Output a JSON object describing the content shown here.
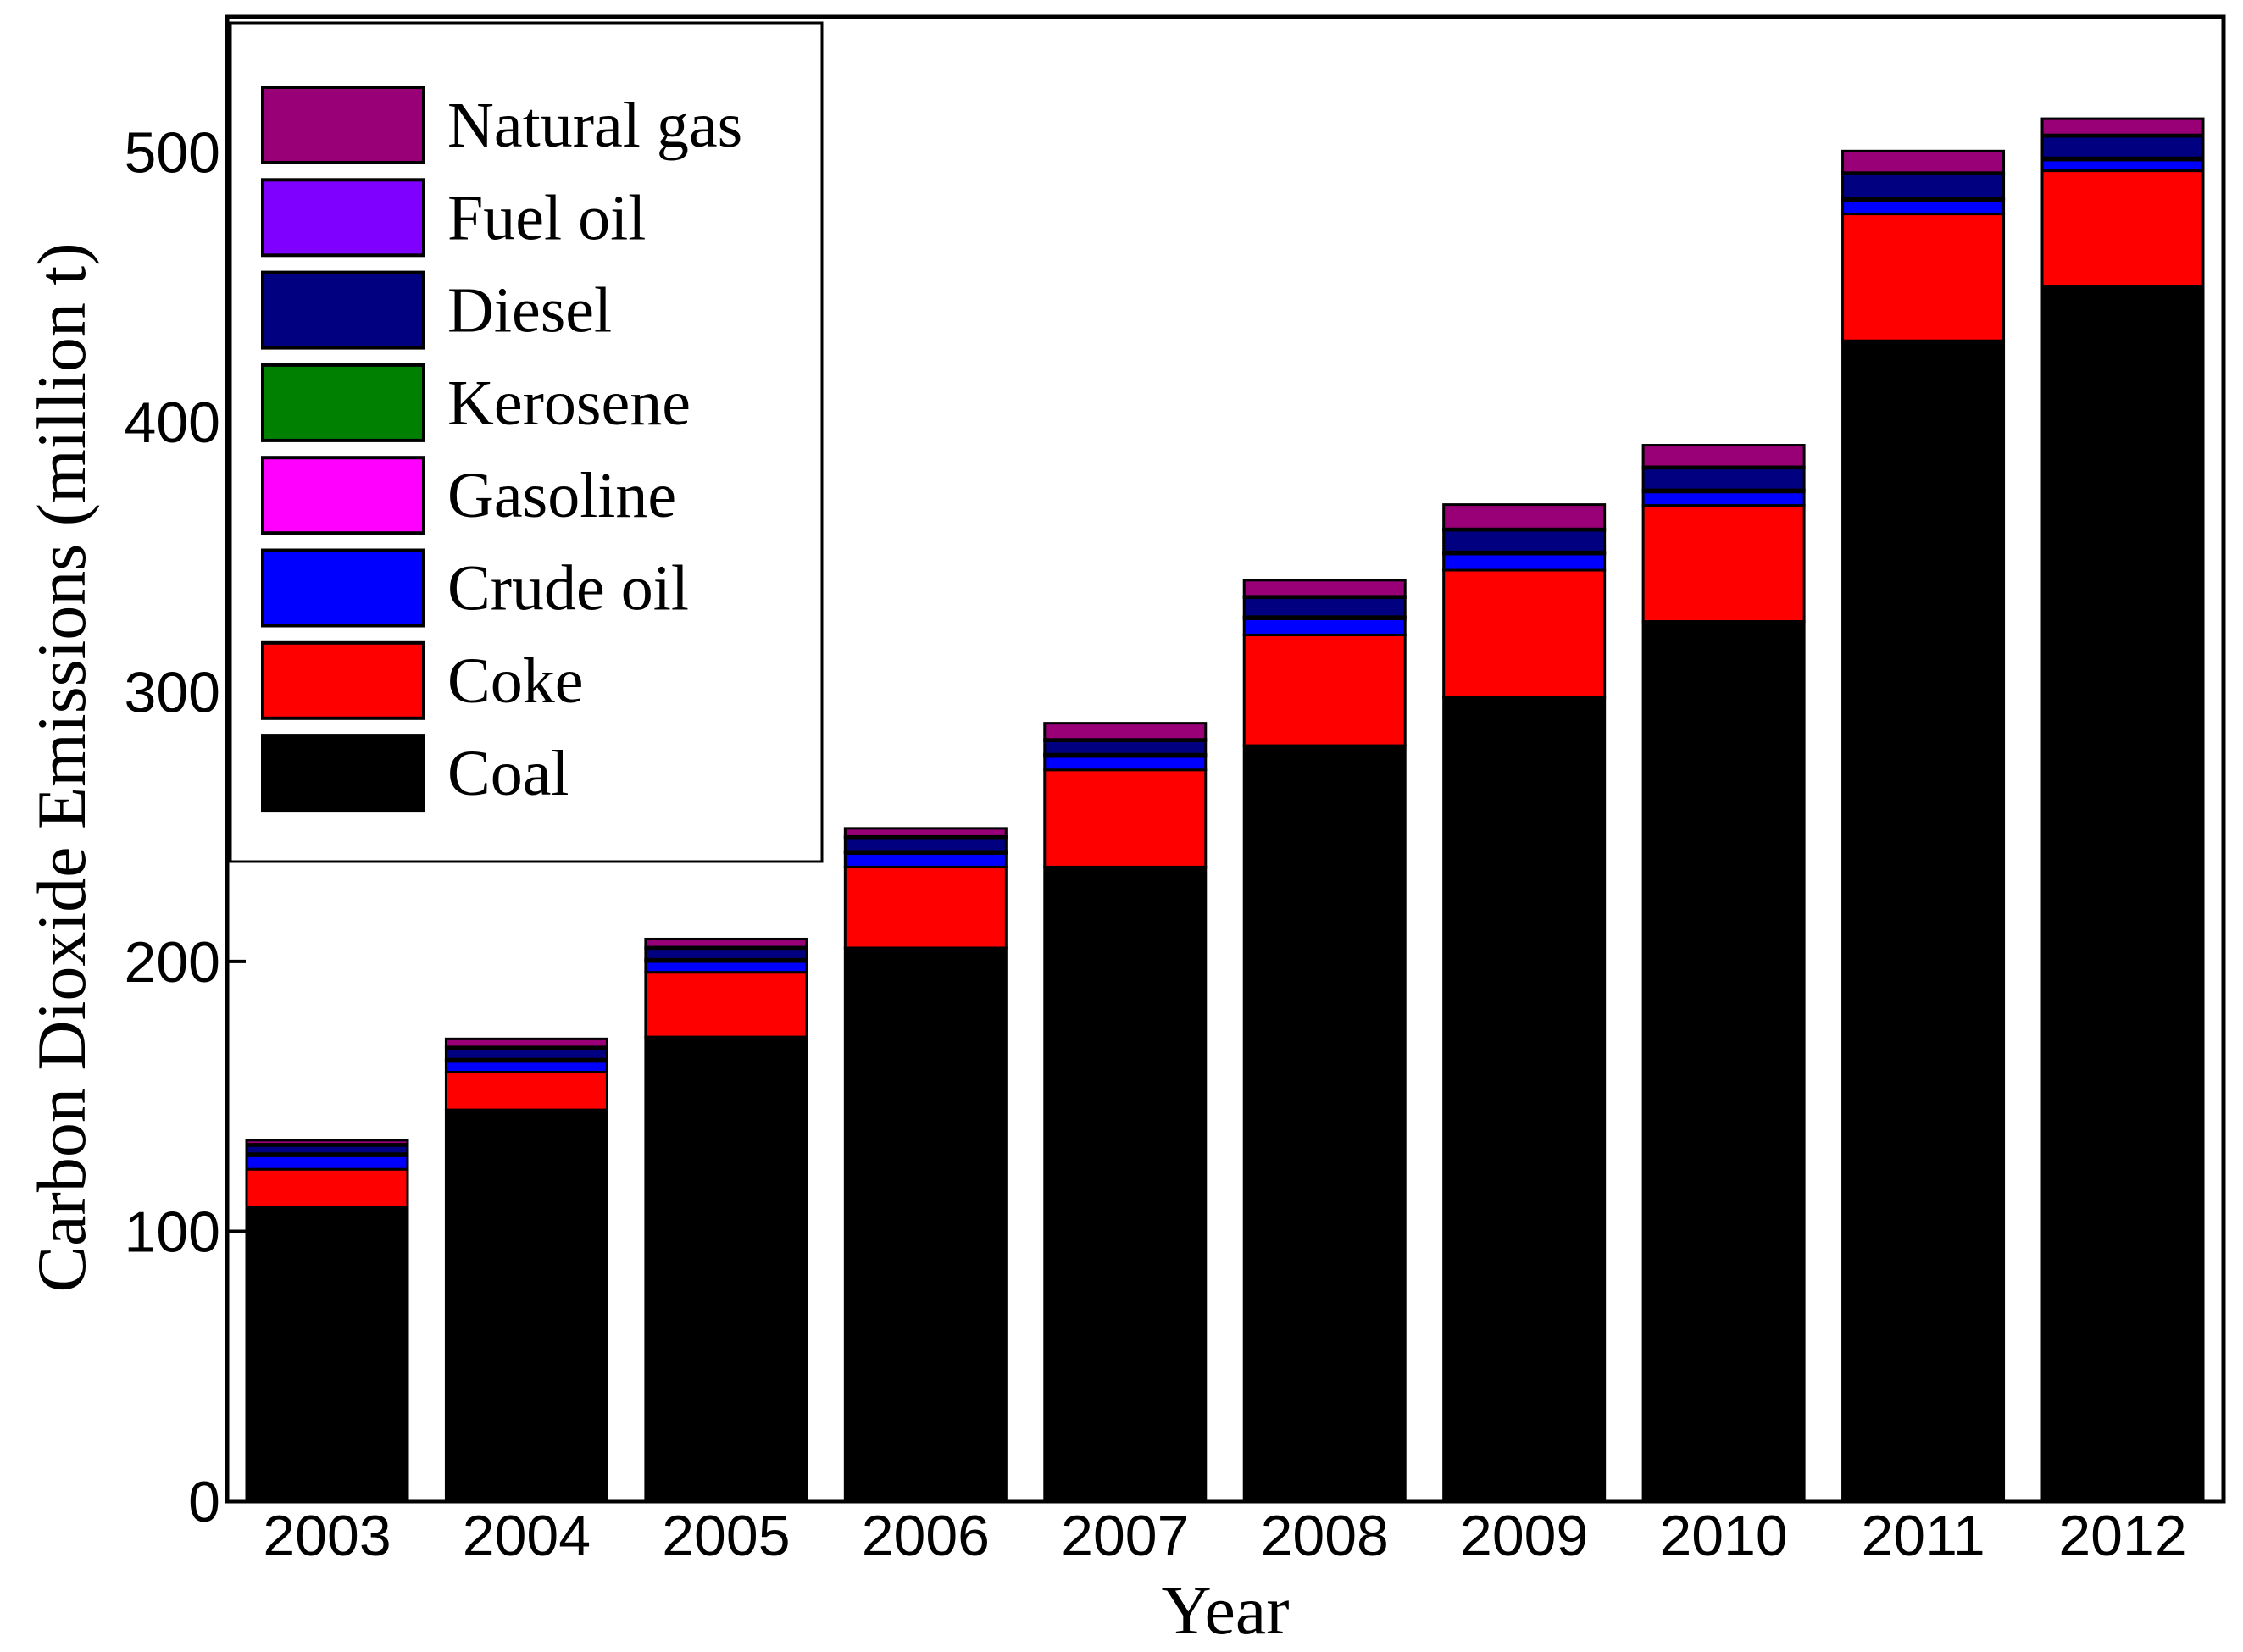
{
  "chart_data": {
    "type": "bar",
    "stacked": true,
    "title": "",
    "xlabel": "Year",
    "ylabel": "Carbon Dioxide Emissions (million t)",
    "ylim": [
      0,
      550
    ],
    "yticks": [
      0,
      100,
      200,
      300,
      400,
      500
    ],
    "grid": false,
    "legend_position": "top-left",
    "categories": [
      "2003",
      "2004",
      "2005",
      "2006",
      "2007",
      "2008",
      "2009",
      "2010",
      "2011",
      "2012"
    ],
    "series": [
      {
        "name": "Coal",
        "color": "#000000",
        "values": [
          109,
          145,
          172,
          205,
          235,
          280,
          298,
          326,
          430,
          450
        ]
      },
      {
        "name": "Coke",
        "color": "#FF0000",
        "values": [
          14,
          14,
          24,
          30,
          36,
          41,
          47,
          43,
          47,
          43
        ]
      },
      {
        "name": "Crude oil",
        "color": "#0000FF",
        "values": [
          5,
          4,
          4,
          5,
          5,
          6,
          6,
          5,
          5,
          4
        ]
      },
      {
        "name": "Gasoline",
        "color": "#FF00FF",
        "values": [
          0.5,
          0.5,
          0.5,
          0.5,
          0.5,
          0.5,
          0.5,
          0.5,
          0.5,
          0.5
        ]
      },
      {
        "name": "Kerosene",
        "color": "#008000",
        "values": [
          0.3,
          0.3,
          0.3,
          0.3,
          0.3,
          0.3,
          0.3,
          0.3,
          0.3,
          0.3
        ]
      },
      {
        "name": "Diesel",
        "color": "#000080",
        "values": [
          3,
          4,
          4,
          5,
          5,
          7,
          8,
          8,
          9,
          8
        ]
      },
      {
        "name": "Fuel oil",
        "color": "#8000FF",
        "values": [
          0.5,
          0.5,
          0.5,
          0.5,
          0.5,
          0.5,
          0.5,
          0.5,
          0.5,
          0.5
        ]
      },
      {
        "name": "Natural gas",
        "color": "#990077",
        "values": [
          1.5,
          3,
          3,
          3,
          6,
          6,
          9,
          8,
          8,
          6
        ]
      }
    ],
    "legend_order": [
      "Natural gas",
      "Fuel oil",
      "Diesel",
      "Kerosene",
      "Gasoline",
      "Crude oil",
      "Coke",
      "Coal"
    ]
  }
}
